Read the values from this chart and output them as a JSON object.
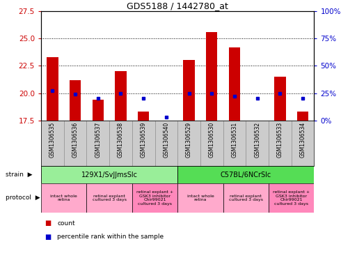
{
  "title": "GDS5188 / 1442780_at",
  "samples": [
    "GSM1306535",
    "GSM1306536",
    "GSM1306537",
    "GSM1306538",
    "GSM1306539",
    "GSM1306540",
    "GSM1306529",
    "GSM1306530",
    "GSM1306531",
    "GSM1306532",
    "GSM1306533",
    "GSM1306534"
  ],
  "count_values": [
    23.3,
    21.2,
    19.4,
    22.0,
    18.3,
    17.5,
    23.0,
    25.6,
    24.2,
    17.5,
    21.5,
    18.3
  ],
  "percentile_pct": [
    27,
    24,
    20,
    25,
    20,
    3,
    25,
    25,
    22,
    20,
    25,
    20
  ],
  "ylim_left": [
    17.5,
    27.5
  ],
  "ylim_right": [
    0,
    100
  ],
  "yticks_left": [
    17.5,
    20,
    22.5,
    25,
    27.5
  ],
  "yticks_right": [
    0,
    25,
    50,
    75,
    100
  ],
  "bar_color": "#cc0000",
  "dot_color": "#0000cc",
  "strain_groups": [
    {
      "label": "129X1/SvJJmsSlc",
      "start": 0,
      "end": 6,
      "color": "#99ee99"
    },
    {
      "label": "C57BL/6NCrSlc",
      "start": 6,
      "end": 12,
      "color": "#55dd55"
    }
  ],
  "protocol_groups": [
    {
      "label": "intact whole\nretina",
      "start": 0,
      "end": 2,
      "color": "#ffaacc"
    },
    {
      "label": "retinal explant\ncultured 3 days",
      "start": 2,
      "end": 4,
      "color": "#ffaacc"
    },
    {
      "label": "retinal explant +\nGSK3 inhibitor\nChir99021\ncultured 3 days",
      "start": 4,
      "end": 6,
      "color": "#ff88bb"
    },
    {
      "label": "intact whole\nretina",
      "start": 6,
      "end": 8,
      "color": "#ffaacc"
    },
    {
      "label": "retinal explant\ncultured 3 days",
      "start": 8,
      "end": 10,
      "color": "#ffaacc"
    },
    {
      "label": "retinal explant +\nGSK3 inhibitor\nChir99021\ncultured 3 days",
      "start": 10,
      "end": 12,
      "color": "#ff88bb"
    }
  ],
  "bar_bottom": 17.5,
  "bg_color": "#ffffff",
  "tick_label_color_left": "#cc0000",
  "tick_label_color_right": "#0000cc",
  "sample_bg": "#cccccc",
  "grid_ticks": [
    20.0,
    22.5,
    25.0
  ]
}
